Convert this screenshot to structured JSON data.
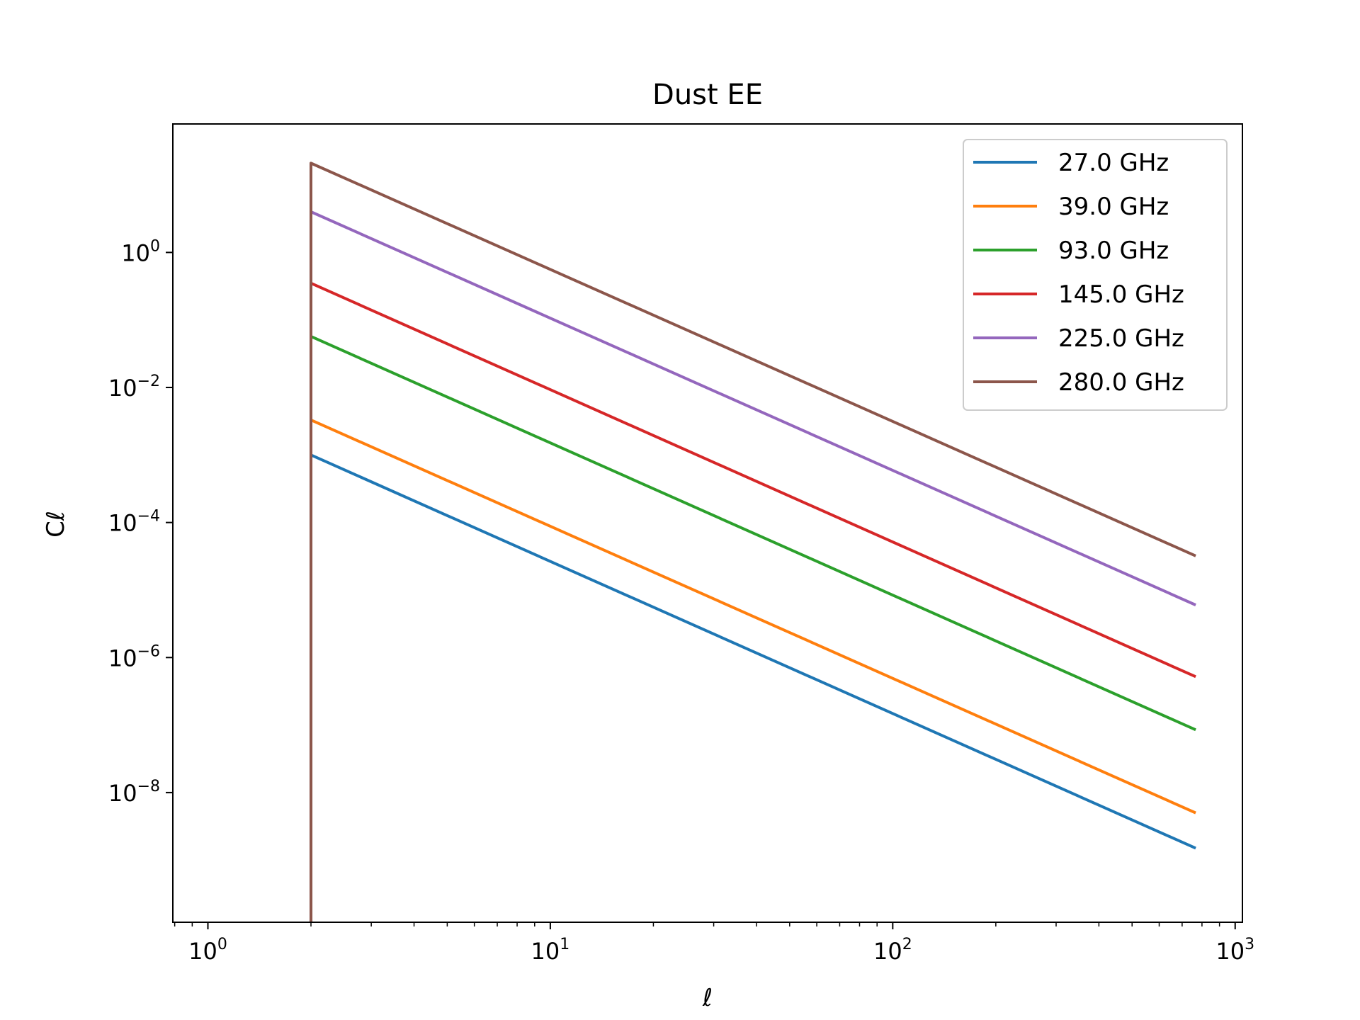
{
  "chart_data": {
    "type": "line",
    "title": "Dust EE",
    "xlabel": "ℓ",
    "ylabel": "Cℓ",
    "xscale": "log",
    "yscale": "log",
    "xlim": [
      0.79,
      1050
    ],
    "ylim": [
      1.2e-10,
      80
    ],
    "xticks": [
      {
        "value": 1,
        "base": "10",
        "exp": "0"
      },
      {
        "value": 10,
        "base": "10",
        "exp": "1"
      },
      {
        "value": 100,
        "base": "10",
        "exp": "2"
      },
      {
        "value": 1000,
        "base": "10",
        "exp": "3"
      }
    ],
    "yticks": [
      {
        "value": 1,
        "base": "10",
        "exp": "0"
      },
      {
        "value": 0.01,
        "base": "10",
        "exp": "−2"
      },
      {
        "value": 0.0001,
        "base": "10",
        "exp": "−4"
      },
      {
        "value": 1e-06,
        "base": "10",
        "exp": "−6"
      },
      {
        "value": 1e-08,
        "base": "10",
        "exp": "−8"
      }
    ],
    "grid": false,
    "legend_position": "top-right",
    "series": [
      {
        "name": "27.0 GHz",
        "color": "#1f77b4",
        "x": [
          2,
          2,
          767
        ],
        "y": [
          1e-10,
          0.001,
          1.5e-09
        ]
      },
      {
        "name": "39.0 GHz",
        "color": "#ff7f0e",
        "x": [
          2,
          2,
          767
        ],
        "y": [
          1e-10,
          0.0033,
          5e-09
        ]
      },
      {
        "name": "93.0 GHz",
        "color": "#2ca02c",
        "x": [
          2,
          2,
          767
        ],
        "y": [
          1e-10,
          0.057,
          8.5e-08
        ]
      },
      {
        "name": "145.0 GHz",
        "color": "#d62728",
        "x": [
          2,
          2,
          767
        ],
        "y": [
          1e-10,
          0.35,
          5.2e-07
        ]
      },
      {
        "name": "225.0 GHz",
        "color": "#9467bd",
        "x": [
          2,
          2,
          767
        ],
        "y": [
          1e-10,
          4.0,
          6e-06
        ]
      },
      {
        "name": "280.0 GHz",
        "color": "#8c564b",
        "x": [
          2,
          2,
          767
        ],
        "y": [
          1e-10,
          21,
          3.2e-05
        ]
      }
    ]
  }
}
